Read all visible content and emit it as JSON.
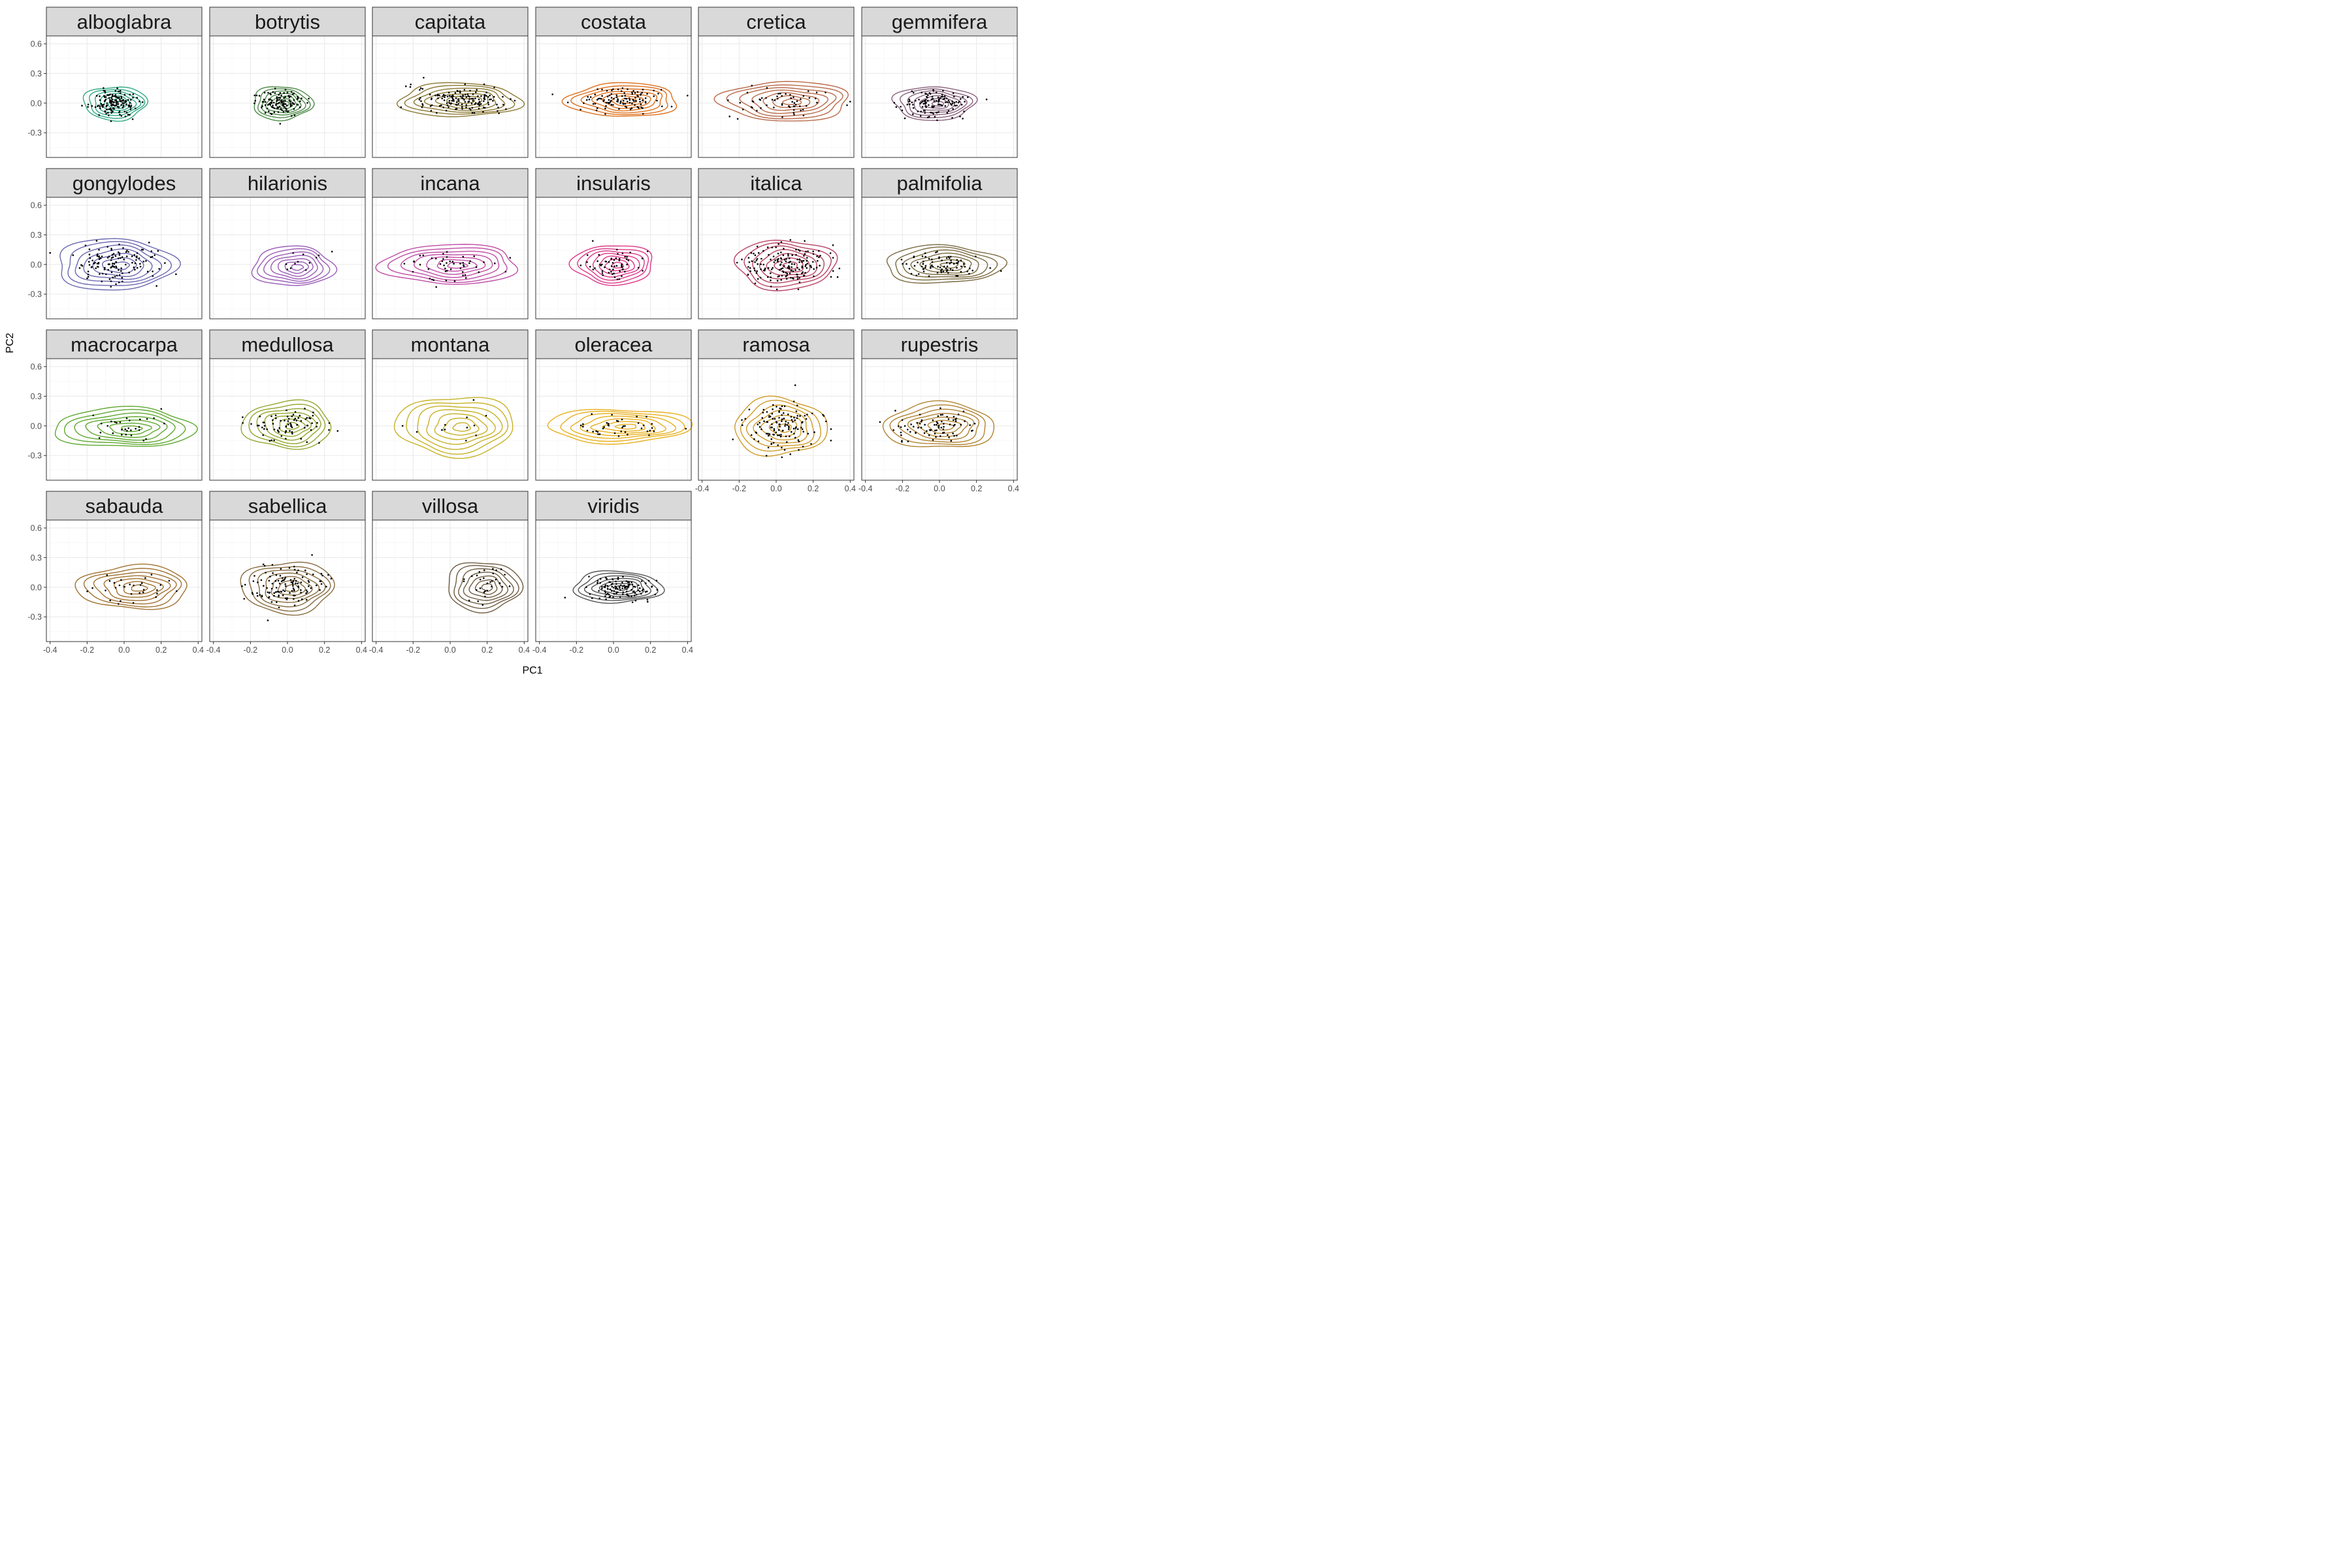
{
  "chart_data": {
    "type": "scatter",
    "xlabel": "PC1",
    "ylabel": "PC2",
    "xlim": [
      -0.42,
      0.42
    ],
    "ylim": [
      -0.55,
      0.68
    ],
    "x_ticks": [
      -0.4,
      -0.2,
      0.0,
      0.2,
      0.4
    ],
    "x_tick_labels": [
      "-0.4",
      "-0.2",
      "0.0",
      "0.2",
      "0.4"
    ],
    "y_ticks": [
      -0.3,
      0.0,
      0.3,
      0.6
    ],
    "y_tick_labels": [
      "-0.3",
      "0.0",
      "0.3",
      "0.6"
    ],
    "grid": true,
    "layers": [
      "density_2d_contours",
      "points"
    ],
    "panels": [
      {
        "name": "alboglabra",
        "color": "#1b9e77",
        "cx": -0.05,
        "cy": 0.0,
        "rx": 0.17,
        "ry": 0.17,
        "n": 150
      },
      {
        "name": "botrytis",
        "color": "#3a7d34",
        "cx": -0.03,
        "cy": 0.0,
        "rx": 0.16,
        "ry": 0.17,
        "n": 120
      },
      {
        "name": "capitata",
        "color": "#7f6a1d",
        "cx": 0.05,
        "cy": 0.03,
        "rx": 0.33,
        "ry": 0.17,
        "n": 150
      },
      {
        "name": "costata",
        "color": "#d95f02",
        "cx": 0.05,
        "cy": 0.03,
        "rx": 0.3,
        "ry": 0.17,
        "n": 110
      },
      {
        "name": "cretica",
        "color": "#b05a36",
        "cx": 0.05,
        "cy": 0.02,
        "rx": 0.35,
        "ry": 0.2,
        "n": 60
      },
      {
        "name": "gemmifera",
        "color": "#7b4f6e",
        "cx": -0.03,
        "cy": 0.0,
        "rx": 0.22,
        "ry": 0.17,
        "n": 120
      },
      {
        "name": "gongylodes",
        "color": "#5a56a8",
        "cx": -0.05,
        "cy": 0.0,
        "rx": 0.32,
        "ry": 0.26,
        "n": 130
      },
      {
        "name": "hilarionis",
        "color": "#8e48ae",
        "cx": 0.03,
        "cy": -0.02,
        "rx": 0.22,
        "ry": 0.2,
        "n": 12
      },
      {
        "name": "incana",
        "color": "#b8399c",
        "cx": 0.0,
        "cy": 0.0,
        "rx": 0.37,
        "ry": 0.2,
        "n": 50
      },
      {
        "name": "insularis",
        "color": "#d9207c",
        "cx": 0.0,
        "cy": 0.0,
        "rx": 0.22,
        "ry": 0.2,
        "n": 60
      },
      {
        "name": "italica",
        "color": "#b02d54",
        "cx": 0.05,
        "cy": 0.0,
        "rx": 0.27,
        "ry": 0.25,
        "n": 170
      },
      {
        "name": "palmifolia",
        "color": "#6b5a2a",
        "cx": 0.02,
        "cy": 0.0,
        "rx": 0.32,
        "ry": 0.19,
        "n": 80
      },
      {
        "name": "macrocarpa",
        "color": "#4d9e18",
        "cx": 0.0,
        "cy": -0.02,
        "rx": 0.38,
        "ry": 0.2,
        "n": 30
      },
      {
        "name": "medullosa",
        "color": "#889c18",
        "cx": 0.0,
        "cy": 0.01,
        "rx": 0.24,
        "ry": 0.24,
        "n": 80
      },
      {
        "name": "montana",
        "color": "#c0a80c",
        "cx": 0.03,
        "cy": 0.0,
        "rx": 0.32,
        "ry": 0.3,
        "n": 12
      },
      {
        "name": "oleracea",
        "color": "#e6a704",
        "cx": 0.03,
        "cy": 0.0,
        "rx": 0.39,
        "ry": 0.17,
        "n": 40
      },
      {
        "name": "ramosa",
        "color": "#c9900f",
        "cx": 0.02,
        "cy": -0.01,
        "rx": 0.25,
        "ry": 0.29,
        "n": 130
      },
      {
        "name": "rupestris",
        "color": "#a8751c",
        "cx": 0.0,
        "cy": 0.0,
        "rx": 0.3,
        "ry": 0.23,
        "n": 80
      },
      {
        "name": "sabauda",
        "color": "#97631a",
        "cx": 0.05,
        "cy": 0.0,
        "rx": 0.3,
        "ry": 0.22,
        "n": 30
      },
      {
        "name": "sabellica",
        "color": "#7a5a2a",
        "cx": 0.0,
        "cy": 0.0,
        "rx": 0.25,
        "ry": 0.26,
        "n": 120
      },
      {
        "name": "villosa",
        "color": "#5f4a2e",
        "cx": 0.18,
        "cy": 0.01,
        "rx": 0.2,
        "ry": 0.25,
        "n": 30
      },
      {
        "name": "viridis",
        "color": "#404040",
        "cx": 0.02,
        "cy": 0.0,
        "rx": 0.24,
        "ry": 0.16,
        "n": 120
      }
    ]
  }
}
